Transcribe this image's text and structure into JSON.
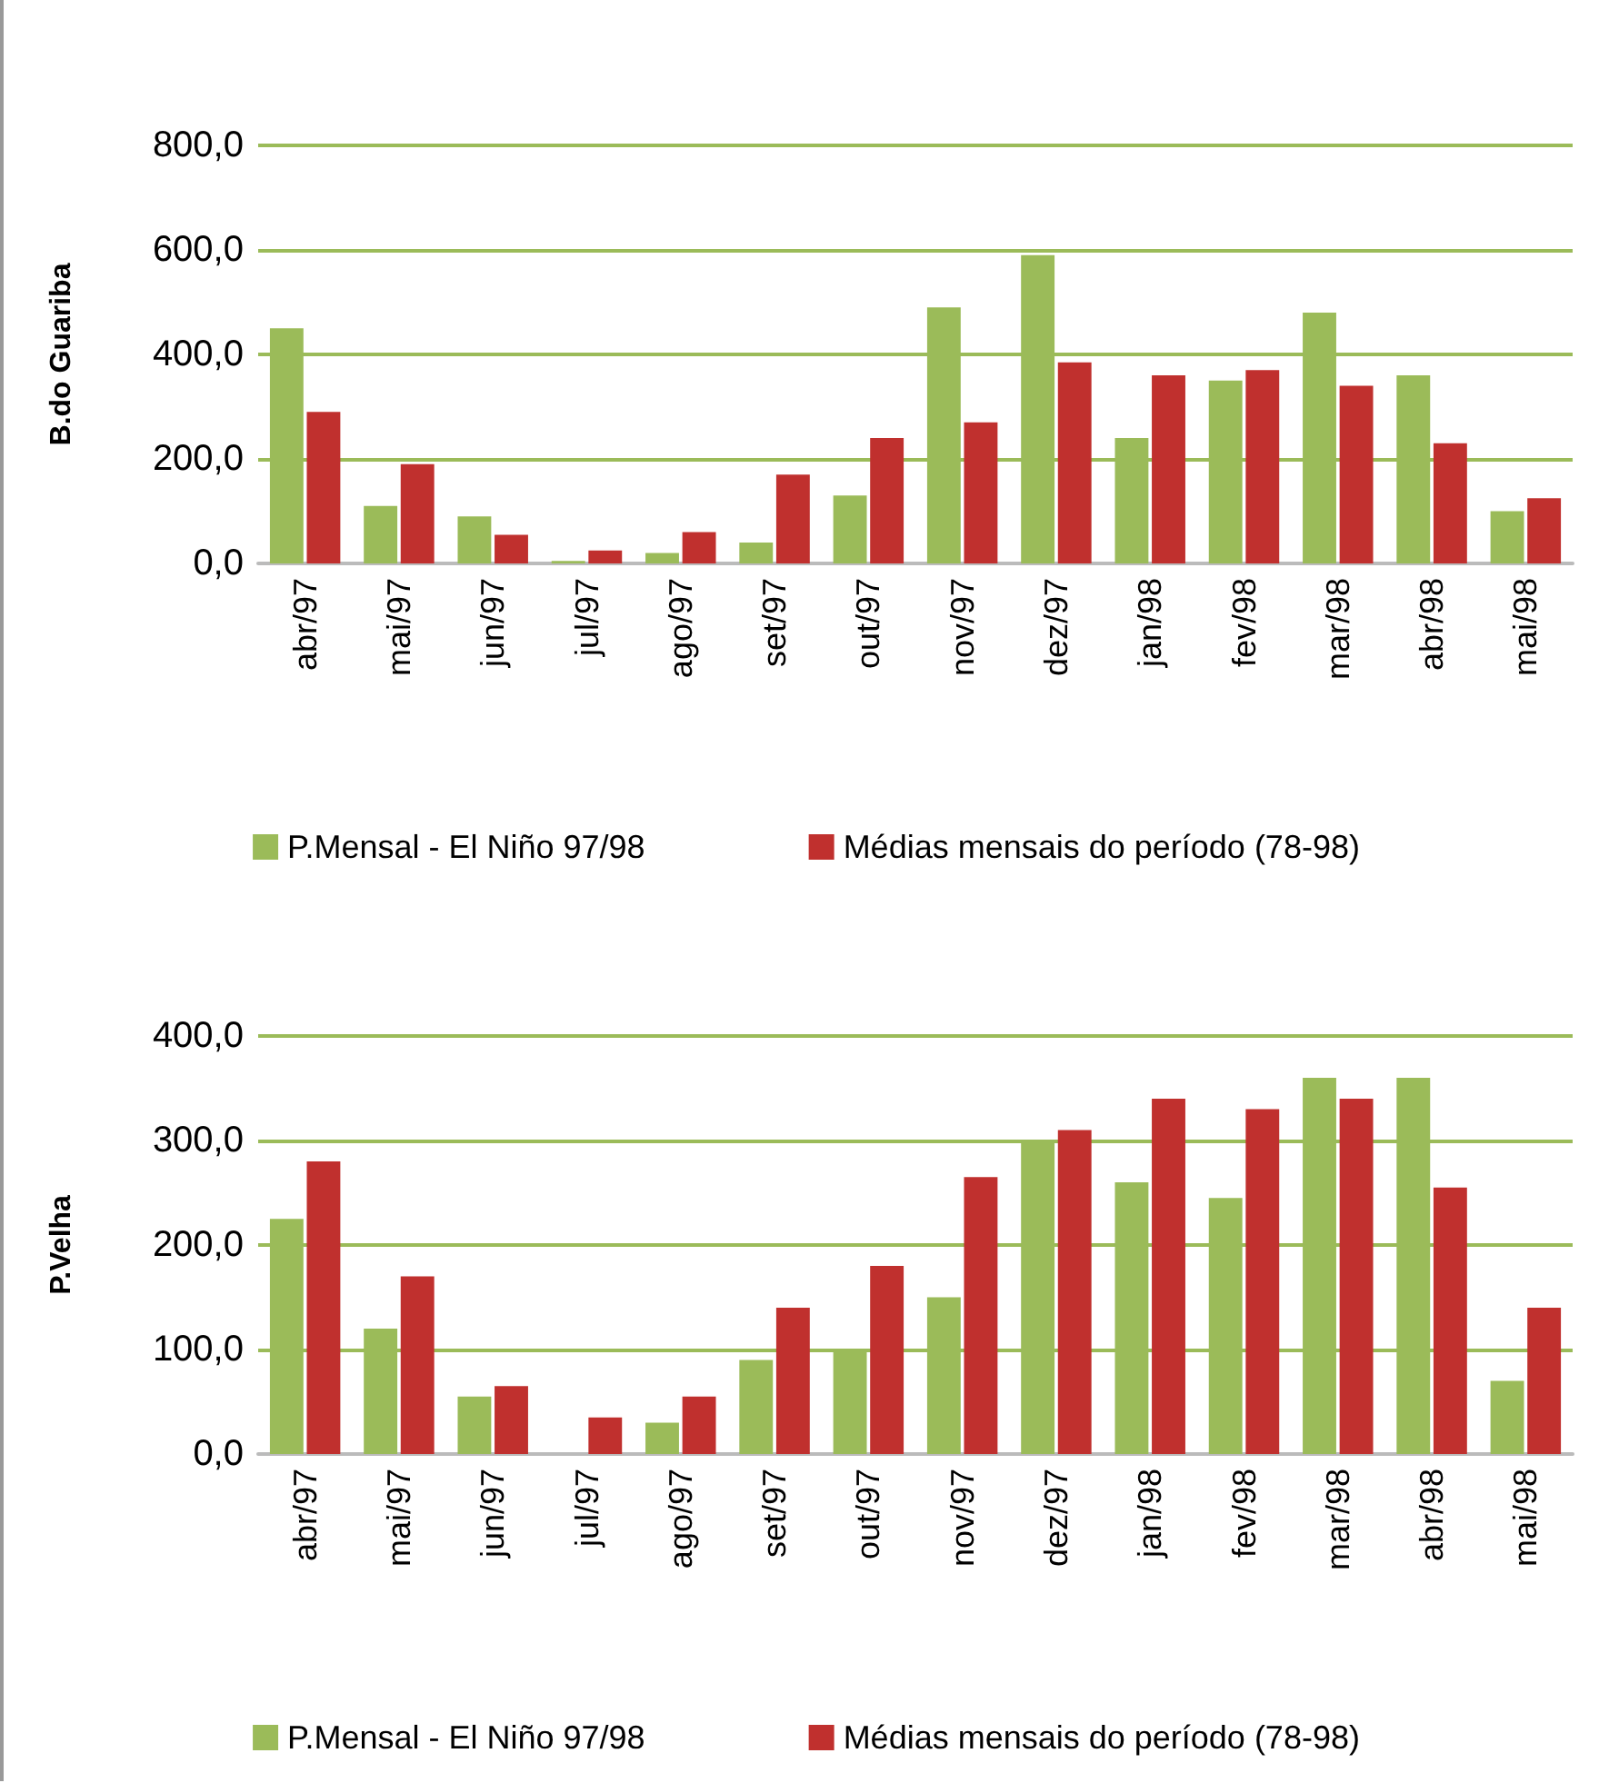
{
  "chart_data": [
    {
      "type": "bar",
      "ylabel": "B.do Guariba",
      "categories": [
        "abr/97",
        "mai/97",
        "jun/97",
        "jul/97",
        "ago/97",
        "set/97",
        "out/97",
        "nov/97",
        "dez/97",
        "jan/98",
        "fev/98",
        "mar/98",
        "abr/98",
        "mai/98"
      ],
      "series": [
        {
          "name": "P.Mensal - El Niño 97/98",
          "color": "#9bbb59",
          "values": [
            450,
            110,
            90,
            5,
            20,
            40,
            130,
            490,
            590,
            240,
            350,
            480,
            360,
            100
          ]
        },
        {
          "name": "Médias mensais do período (78-98)",
          "color": "#c0302e",
          "values": [
            290,
            190,
            55,
            25,
            60,
            170,
            240,
            270,
            385,
            360,
            370,
            340,
            230,
            125
          ]
        }
      ],
      "ylim": [
        0,
        800
      ],
      "yticks": [
        {
          "value": 0,
          "label": "0,0"
        },
        {
          "value": 200,
          "label": "200,0"
        },
        {
          "value": 400,
          "label": "400,0"
        },
        {
          "value": 600,
          "label": "600,0"
        },
        {
          "value": 800,
          "label": "800,0"
        }
      ],
      "grid": "y",
      "legend": "bottom"
    },
    {
      "type": "bar",
      "ylabel": "P.Velha",
      "categories": [
        "abr/97",
        "mai/97",
        "jun/97",
        "jul/97",
        "ago/97",
        "set/97",
        "out/97",
        "nov/97",
        "dez/97",
        "jan/98",
        "fev/98",
        "mar/98",
        "abr/98",
        "mai/98"
      ],
      "series": [
        {
          "name": "P.Mensal - El Niño 97/98",
          "color": "#9bbb59",
          "values": [
            225,
            120,
            55,
            0,
            30,
            90,
            100,
            150,
            300,
            260,
            245,
            360,
            360,
            70
          ]
        },
        {
          "name": "Médias mensais do período (78-98)",
          "color": "#c0302e",
          "values": [
            280,
            170,
            65,
            35,
            55,
            140,
            180,
            265,
            310,
            340,
            330,
            340,
            255,
            140
          ]
        }
      ],
      "ylim": [
        0,
        400
      ],
      "yticks": [
        {
          "value": 0,
          "label": "0,0"
        },
        {
          "value": 100,
          "label": "100,0"
        },
        {
          "value": 200,
          "label": "200,0"
        },
        {
          "value": 300,
          "label": "300,0"
        },
        {
          "value": 400,
          "label": "400,0"
        }
      ],
      "grid": "y",
      "legend": "bottom"
    }
  ]
}
